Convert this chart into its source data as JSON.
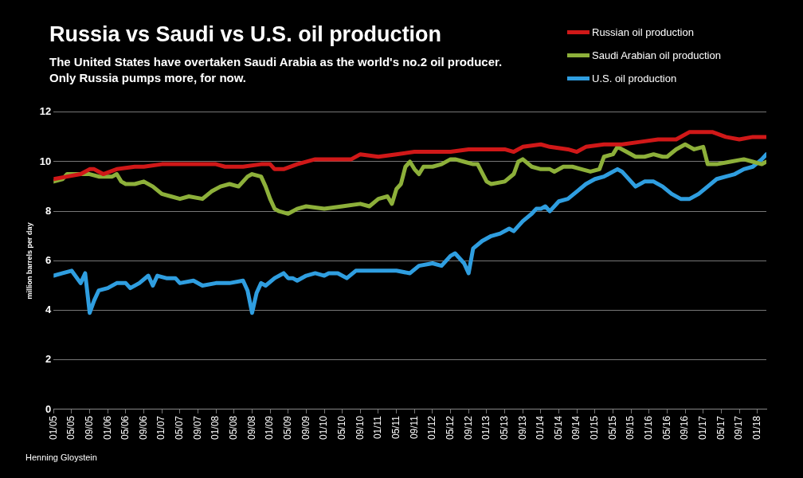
{
  "chart_data": {
    "type": "line",
    "title": "Russia vs Saudi vs U.S. oil production",
    "subtitle": "The United States have overtaken Saudi Arabia as the world's no.2 oil producer.\nOnly Russia pumps more, for now.",
    "ylabel": "million barrels per day",
    "annotations": [
      "Henning Gloystein"
    ],
    "xlim": [
      "2005-01",
      "2018-03"
    ],
    "ylim": [
      0,
      12
    ],
    "yticks": [
      0,
      2,
      4,
      6,
      8,
      10,
      12
    ],
    "xticks": [
      {
        "value": "2005-01",
        "label": "01/05"
      },
      {
        "value": "2005-05",
        "label": "05/05"
      },
      {
        "value": "2005-09",
        "label": "09/05"
      },
      {
        "value": "2006-01",
        "label": "01/06"
      },
      {
        "value": "2006-05",
        "label": "05/06"
      },
      {
        "value": "2006-09",
        "label": "09/06"
      },
      {
        "value": "2007-01",
        "label": "01/07"
      },
      {
        "value": "2007-05",
        "label": "05/07"
      },
      {
        "value": "2007-09",
        "label": "09/07"
      },
      {
        "value": "2008-01",
        "label": "01/08"
      },
      {
        "value": "2008-05",
        "label": "05/08"
      },
      {
        "value": "2008-09",
        "label": "09/08"
      },
      {
        "value": "2009-01",
        "label": "01/09"
      },
      {
        "value": "2009-05",
        "label": "05/09"
      },
      {
        "value": "2009-09",
        "label": "09/09"
      },
      {
        "value": "2010-01",
        "label": "01/10"
      },
      {
        "value": "2010-05",
        "label": "05/10"
      },
      {
        "value": "2010-09",
        "label": "09/10"
      },
      {
        "value": "2011-01",
        "label": "01/11"
      },
      {
        "value": "2011-05",
        "label": "05/11"
      },
      {
        "value": "2011-09",
        "label": "09/11"
      },
      {
        "value": "2012-01",
        "label": "01/12"
      },
      {
        "value": "2012-05",
        "label": "05/12"
      },
      {
        "value": "2012-09",
        "label": "09/12"
      },
      {
        "value": "2013-01",
        "label": "01/13"
      },
      {
        "value": "2013-05",
        "label": "05/13"
      },
      {
        "value": "2013-09",
        "label": "09/13"
      },
      {
        "value": "2014-01",
        "label": "01/14"
      },
      {
        "value": "2014-05",
        "label": "05/14"
      },
      {
        "value": "2014-09",
        "label": "09/14"
      },
      {
        "value": "2015-01",
        "label": "01/15"
      },
      {
        "value": "2015-05",
        "label": "05/15"
      },
      {
        "value": "2015-09",
        "label": "09/15"
      },
      {
        "value": "2016-01",
        "label": "01/16"
      },
      {
        "value": "2016-05",
        "label": "05/16"
      },
      {
        "value": "2016-09",
        "label": "09/16"
      },
      {
        "value": "2017-01",
        "label": "01/17"
      },
      {
        "value": "2017-05",
        "label": "05/17"
      },
      {
        "value": "2017-09",
        "label": "09/17"
      },
      {
        "value": "2018-01",
        "label": "01/18"
      }
    ],
    "grid": "y",
    "legend": "top right",
    "marker": "none",
    "line_style": "solid",
    "series": [
      {
        "name": "Russian oil production",
        "color": "#d01818",
        "x": [
          "2005-01",
          "2005-04",
          "2005-07",
          "2005-09",
          "2005-10",
          "2005-11",
          "2005-12",
          "2006-03",
          "2006-07",
          "2006-09",
          "2007-01",
          "2007-05",
          "2007-09",
          "2008-01",
          "2008-03",
          "2008-07",
          "2008-11",
          "2009-01",
          "2009-02",
          "2009-04",
          "2009-07",
          "2009-11",
          "2010-03",
          "2010-07",
          "2010-09",
          "2011-01",
          "2011-05",
          "2011-09",
          "2012-01",
          "2012-05",
          "2012-09",
          "2013-01",
          "2013-05",
          "2013-07",
          "2013-09",
          "2014-01",
          "2014-03",
          "2014-07",
          "2014-09",
          "2014-11",
          "2015-03",
          "2015-07",
          "2015-11",
          "2016-03",
          "2016-07",
          "2016-10",
          "2016-12",
          "2017-03",
          "2017-06",
          "2017-09",
          "2017-12",
          "2018-03"
        ],
        "values": [
          9.3,
          9.4,
          9.5,
          9.7,
          9.7,
          9.6,
          9.5,
          9.7,
          9.8,
          9.8,
          9.9,
          9.9,
          9.9,
          9.9,
          9.8,
          9.8,
          9.9,
          9.9,
          9.7,
          9.7,
          9.9,
          10.1,
          10.1,
          10.1,
          10.3,
          10.2,
          10.3,
          10.4,
          10.4,
          10.4,
          10.5,
          10.5,
          10.5,
          10.4,
          10.6,
          10.7,
          10.6,
          10.5,
          10.4,
          10.6,
          10.7,
          10.7,
          10.8,
          10.9,
          10.9,
          11.2,
          11.2,
          11.2,
          11.0,
          10.9,
          11.0,
          11.0
        ]
      },
      {
        "name": "Saudi Arabian oil production",
        "color": "#8db03a",
        "x": [
          "2005-01",
          "2005-03",
          "2005-04",
          "2005-07",
          "2005-09",
          "2005-11",
          "2006-02",
          "2006-03",
          "2006-04",
          "2006-05",
          "2006-07",
          "2006-09",
          "2006-11",
          "2007-01",
          "2007-03",
          "2007-05",
          "2007-07",
          "2007-10",
          "2007-12",
          "2008-02",
          "2008-04",
          "2008-06",
          "2008-08",
          "2008-09",
          "2008-11",
          "2008-12",
          "2009-01",
          "2009-02",
          "2009-03",
          "2009-05",
          "2009-07",
          "2009-09",
          "2010-01",
          "2010-05",
          "2010-09",
          "2010-11",
          "2011-01",
          "2011-03",
          "2011-04",
          "2011-05",
          "2011-06",
          "2011-07",
          "2011-08",
          "2011-09",
          "2011-10",
          "2011-11",
          "2012-01",
          "2012-03",
          "2012-05",
          "2012-06",
          "2012-08",
          "2012-10",
          "2012-11",
          "2013-01",
          "2013-02",
          "2013-05",
          "2013-07",
          "2013-08",
          "2013-09",
          "2013-11",
          "2014-01",
          "2014-03",
          "2014-04",
          "2014-06",
          "2014-08",
          "2014-10",
          "2014-12",
          "2015-02",
          "2015-03",
          "2015-05",
          "2015-06",
          "2015-08",
          "2015-10",
          "2015-12",
          "2016-02",
          "2016-04",
          "2016-05",
          "2016-07",
          "2016-09",
          "2016-10",
          "2016-11",
          "2017-01",
          "2017-02",
          "2017-04",
          "2017-07",
          "2017-10",
          "2017-12",
          "2018-02",
          "2018-03"
        ],
        "values": [
          9.2,
          9.3,
          9.5,
          9.5,
          9.5,
          9.4,
          9.4,
          9.5,
          9.2,
          9.1,
          9.1,
          9.2,
          9.0,
          8.7,
          8.6,
          8.5,
          8.6,
          8.5,
          8.8,
          9.0,
          9.1,
          9.0,
          9.4,
          9.5,
          9.4,
          9.0,
          8.5,
          8.1,
          8.0,
          7.9,
          8.1,
          8.2,
          8.1,
          8.2,
          8.3,
          8.2,
          8.5,
          8.6,
          8.3,
          8.9,
          9.1,
          9.8,
          10.0,
          9.7,
          9.5,
          9.8,
          9.8,
          9.9,
          10.1,
          10.1,
          10.0,
          9.9,
          9.9,
          9.2,
          9.1,
          9.2,
          9.5,
          10.0,
          10.1,
          9.8,
          9.7,
          9.7,
          9.6,
          9.8,
          9.8,
          9.7,
          9.6,
          9.7,
          10.2,
          10.3,
          10.6,
          10.4,
          10.2,
          10.2,
          10.3,
          10.2,
          10.2,
          10.5,
          10.7,
          10.6,
          10.5,
          10.6,
          9.9,
          9.9,
          10.0,
          10.1,
          10.0,
          9.9,
          10.0
        ]
      },
      {
        "name": "U.S. oil production",
        "color": "#2f9ee0",
        "x": [
          "2005-01",
          "2005-03",
          "2005-05",
          "2005-07",
          "2005-08",
          "2005-09",
          "2005-10",
          "2005-11",
          "2006-01",
          "2006-03",
          "2006-05",
          "2006-06",
          "2006-08",
          "2006-10",
          "2006-11",
          "2006-12",
          "2007-02",
          "2007-04",
          "2007-05",
          "2007-08",
          "2007-10",
          "2008-01",
          "2008-04",
          "2008-07",
          "2008-08",
          "2008-09",
          "2008-10",
          "2008-11",
          "2008-12",
          "2009-02",
          "2009-04",
          "2009-05",
          "2009-06",
          "2009-07",
          "2009-09",
          "2009-11",
          "2010-01",
          "2010-02",
          "2010-04",
          "2010-06",
          "2010-08",
          "2010-11",
          "2011-02",
          "2011-05",
          "2011-08",
          "2011-10",
          "2012-01",
          "2012-03",
          "2012-05",
          "2012-06",
          "2012-08",
          "2012-09",
          "2012-10",
          "2012-12",
          "2013-02",
          "2013-04",
          "2013-06",
          "2013-07",
          "2013-09",
          "2013-11",
          "2013-12",
          "2014-01",
          "2014-02",
          "2014-03",
          "2014-05",
          "2014-07",
          "2014-09",
          "2014-11",
          "2015-01",
          "2015-03",
          "2015-04",
          "2015-06",
          "2015-07",
          "2015-09",
          "2015-10",
          "2015-12",
          "2016-02",
          "2016-04",
          "2016-06",
          "2016-08",
          "2016-10",
          "2016-12",
          "2017-02",
          "2017-04",
          "2017-06",
          "2017-08",
          "2017-10",
          "2017-12",
          "2018-02",
          "2018-03"
        ],
        "values": [
          5.4,
          5.5,
          5.6,
          5.1,
          5.5,
          3.9,
          4.4,
          4.8,
          4.9,
          5.1,
          5.1,
          4.9,
          5.1,
          5.4,
          5.0,
          5.4,
          5.3,
          5.3,
          5.1,
          5.2,
          5.0,
          5.1,
          5.1,
          5.2,
          4.8,
          3.9,
          4.7,
          5.1,
          5.0,
          5.3,
          5.5,
          5.3,
          5.3,
          5.2,
          5.4,
          5.5,
          5.4,
          5.5,
          5.5,
          5.3,
          5.6,
          5.6,
          5.6,
          5.6,
          5.5,
          5.8,
          5.9,
          5.8,
          6.2,
          6.3,
          5.9,
          5.5,
          6.5,
          6.8,
          7.0,
          7.1,
          7.3,
          7.2,
          7.6,
          7.9,
          8.1,
          8.1,
          8.2,
          8.0,
          8.4,
          8.5,
          8.8,
          9.1,
          9.3,
          9.4,
          9.5,
          9.7,
          9.6,
          9.2,
          9.0,
          9.2,
          9.2,
          9.0,
          8.7,
          8.5,
          8.5,
          8.7,
          9.0,
          9.3,
          9.4,
          9.5,
          9.7,
          9.8,
          10.1,
          10.3
        ]
      }
    ]
  }
}
